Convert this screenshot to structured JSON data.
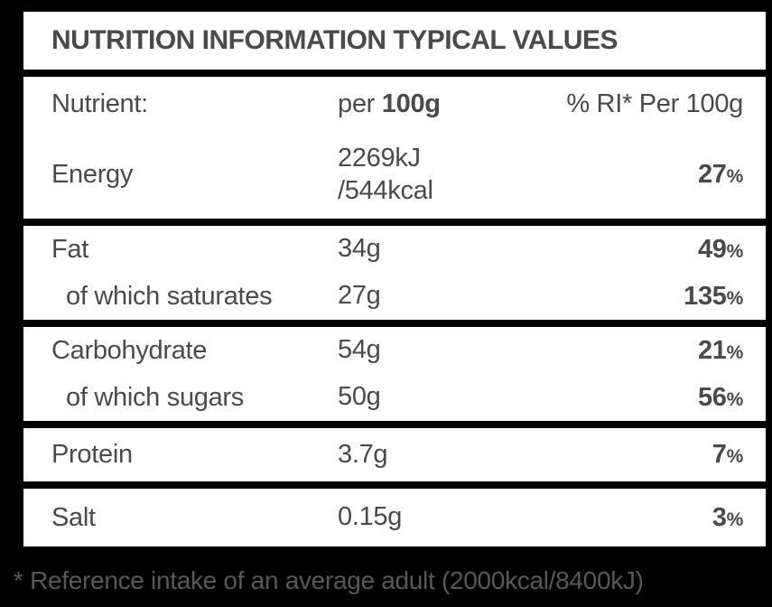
{
  "table": {
    "title": "NUTRITION INFORMATION TYPICAL VALUES",
    "header": {
      "nutrient_label": "Nutrient:",
      "per_prefix": "per ",
      "per_amount": "100g",
      "ri_label": "% RI* Per 100g"
    },
    "groups": [
      {
        "rows": [
          {
            "label": "Energy",
            "amount_lines": [
              "2269kJ",
              "/544kcal"
            ],
            "ri_value": "27",
            "ri_unit": "%",
            "indent": false
          }
        ]
      },
      {
        "rows": [
          {
            "label": "Fat",
            "amount_lines": [
              "34g"
            ],
            "ri_value": "49",
            "ri_unit": "%",
            "indent": false
          },
          {
            "label": "of which saturates",
            "amount_lines": [
              "27g"
            ],
            "ri_value": "135",
            "ri_unit": "%",
            "indent": true
          }
        ]
      },
      {
        "rows": [
          {
            "label": "Carbohydrate",
            "amount_lines": [
              "54g"
            ],
            "ri_value": "21",
            "ri_unit": "%",
            "indent": false
          },
          {
            "label": "of which sugars",
            "amount_lines": [
              "50g"
            ],
            "ri_value": "56",
            "ri_unit": "%",
            "indent": true
          }
        ]
      },
      {
        "rows": [
          {
            "label": "Protein",
            "amount_lines": [
              "3.7g"
            ],
            "ri_value": "7",
            "ri_unit": "%",
            "indent": false
          }
        ]
      },
      {
        "rows": [
          {
            "label": "Salt",
            "amount_lines": [
              "0.15g"
            ],
            "ri_value": "3",
            "ri_unit": "%",
            "indent": false
          }
        ]
      }
    ],
    "footnote": "* Reference intake of an average adult (2000kcal/8400kJ)"
  },
  "colors": {
    "background": "#000000",
    "row_background": "#ffffff",
    "text": "#4a4a4c",
    "footnote_text": "#57585a"
  }
}
